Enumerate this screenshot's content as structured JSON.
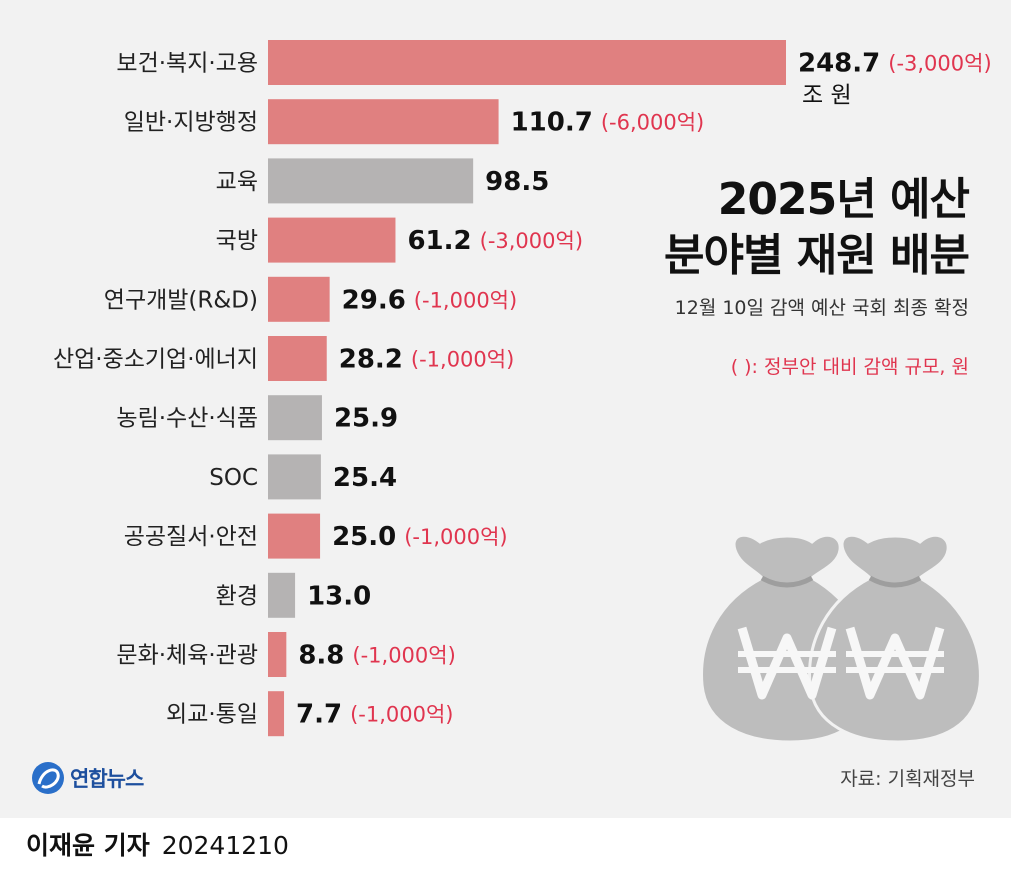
{
  "title_lines": [
    "2025년 예산",
    "분야별 재원 배분"
  ],
  "subtitle": "12월 10일 감액 예산 국회 최종 확정",
  "note": "(    ): 정부안 대비 감액 규모, 원",
  "source": "자료: 기획재정부",
  "logo_text": "연합뉴스",
  "footer": {
    "reporter": "이재윤 기자",
    "date": "20241210"
  },
  "colors": {
    "cut": "#e08080",
    "unchanged": "#b5b3b3",
    "cut_label": "#e0354f",
    "panel": "#f2f2f2"
  },
  "icons": [
    "yonhap-logo-icon",
    "money-bag-icon"
  ],
  "chart_data": {
    "type": "bar",
    "orientation": "horizontal",
    "unit_label": "조 원",
    "categories": [
      "보건·복지·고용",
      "일반·지방행정",
      "교육",
      "국방",
      "연구개발(R&D)",
      "산업·중소기업·에너지",
      "농림·수산·식품",
      "SOC",
      "공공질서·안전",
      "환경",
      "문화·체육·관광",
      "외교·통일"
    ],
    "values": [
      248.7,
      110.7,
      98.5,
      61.2,
      29.6,
      28.2,
      25.9,
      25.4,
      25.0,
      13.0,
      8.8,
      7.7
    ],
    "value_labels": [
      "248.7",
      "110.7",
      "98.5",
      "61.2",
      "29.6",
      "28.2",
      "25.9",
      "25.4",
      "25.0",
      "13.0",
      "8.8",
      "7.7"
    ],
    "cut_labels": [
      "(-3,000억)",
      "(-6,000억)",
      "",
      "(-3,000억)",
      "(-1,000억)",
      "(-1,000억)",
      "",
      "",
      "(-1,000억)",
      "",
      "(-1,000억)",
      "(-1,000억)"
    ],
    "highlighted": [
      true,
      true,
      false,
      true,
      true,
      true,
      false,
      false,
      true,
      false,
      true,
      true
    ],
    "xlim": [
      0,
      248.7
    ],
    "grid": false,
    "legend": "none"
  }
}
